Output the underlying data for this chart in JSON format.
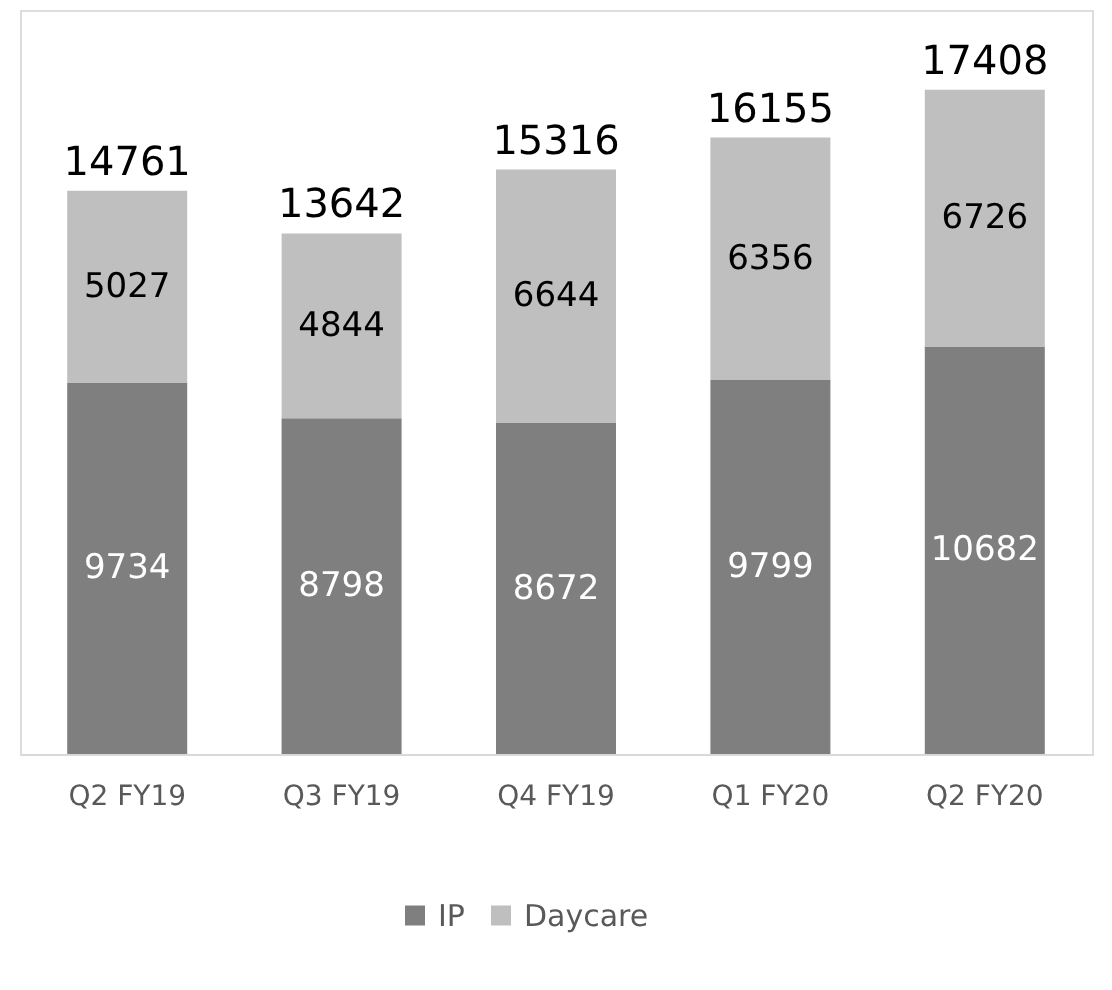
{
  "chart_data": {
    "type": "bar",
    "stacked": true,
    "data_labels": true,
    "legend": "bottom",
    "grid": false,
    "categories": [
      "Q2 FY19",
      "Q3 FY19",
      "Q4 FY19",
      "Q1 FY20",
      "Q2 FY20"
    ],
    "series": [
      {
        "name": "IP",
        "color": "#7f7f7f",
        "values": [
          9734,
          8798,
          8672,
          9799,
          10682
        ]
      },
      {
        "name": "Daycare",
        "color": "#bfbfbf",
        "values": [
          5027,
          4844,
          6644,
          6356,
          6726
        ]
      }
    ],
    "totals": [
      "14761",
      "13642",
      "15316",
      "16155",
      "17408"
    ]
  }
}
